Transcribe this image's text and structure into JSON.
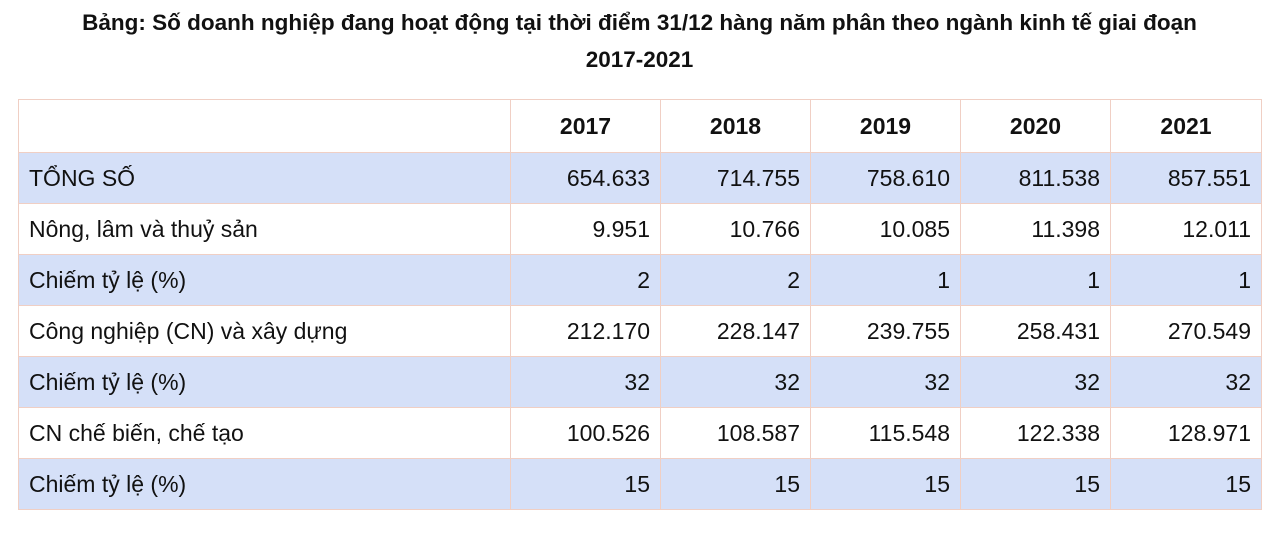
{
  "title": {
    "line1": "Bảng: Số doanh nghiệp đang hoạt động tại thời điểm 31/12 hàng năm phân theo ngành kinh tế giai đoạn",
    "line2": "2017-2021"
  },
  "table": {
    "corner": "",
    "years": [
      "2017",
      "2018",
      "2019",
      "2020",
      "2021"
    ],
    "rows": [
      {
        "label": "TỔNG SỐ",
        "values": [
          "654.633",
          "714.755",
          "758.610",
          "811.538",
          "857.551"
        ]
      },
      {
        "label": "Nông, lâm và thuỷ sản",
        "values": [
          "9.951",
          "10.766",
          "10.085",
          "11.398",
          "12.011"
        ]
      },
      {
        "label": "Chiếm tỷ lệ (%)",
        "values": [
          "2",
          "2",
          "1",
          "1",
          "1"
        ]
      },
      {
        "label": "Công nghiệp (CN) và xây dựng",
        "values": [
          "212.170",
          "228.147",
          "239.755",
          "258.431",
          "270.549"
        ]
      },
      {
        "label": "Chiếm tỷ lệ (%)",
        "values": [
          "32",
          "32",
          "32",
          "32",
          "32"
        ]
      },
      {
        "label": "CN chế biến, chế tạo",
        "values": [
          "100.526",
          "108.587",
          "115.548",
          "122.338",
          "128.971"
        ]
      },
      {
        "label": "Chiếm tỷ lệ (%)",
        "values": [
          "15",
          "15",
          "15",
          "15",
          "15"
        ]
      }
    ]
  },
  "colors": {
    "shaded_row": "#d5e0f8",
    "plain_row": "#ffffff",
    "border": "#f0cfc4",
    "text": "#111111"
  }
}
